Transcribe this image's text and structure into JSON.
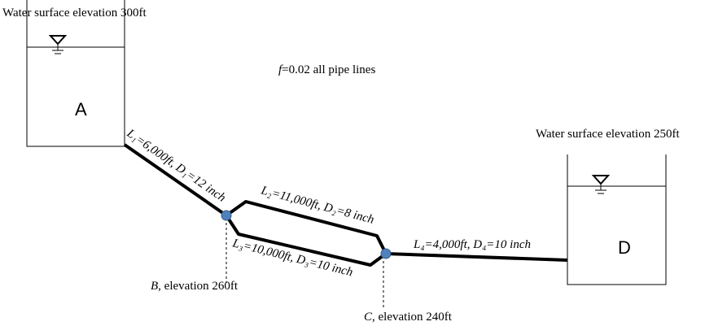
{
  "tank_a": {
    "elevation_label": "Water surface elevation 300ft",
    "name": "A"
  },
  "tank_d": {
    "elevation_label": "Water surface elevation 250ft",
    "name": "D"
  },
  "note": {
    "symbol": "f",
    "text": "=0.02 all pipe lines"
  },
  "pipes": [
    {
      "label": "L₁=6,000ft, D₁=12 inch"
    },
    {
      "label": "L₂=11,000ft, D₂=8 inch"
    },
    {
      "label": "L₃=10,000ft, D₃=10 inch"
    },
    {
      "label": "L₄=4,000ft, D₄=10 inch"
    }
  ],
  "nodes": [
    {
      "name": "B",
      "label": ", elevation 260ft"
    },
    {
      "name": "C",
      "label": ", elevation 240ft"
    }
  ]
}
